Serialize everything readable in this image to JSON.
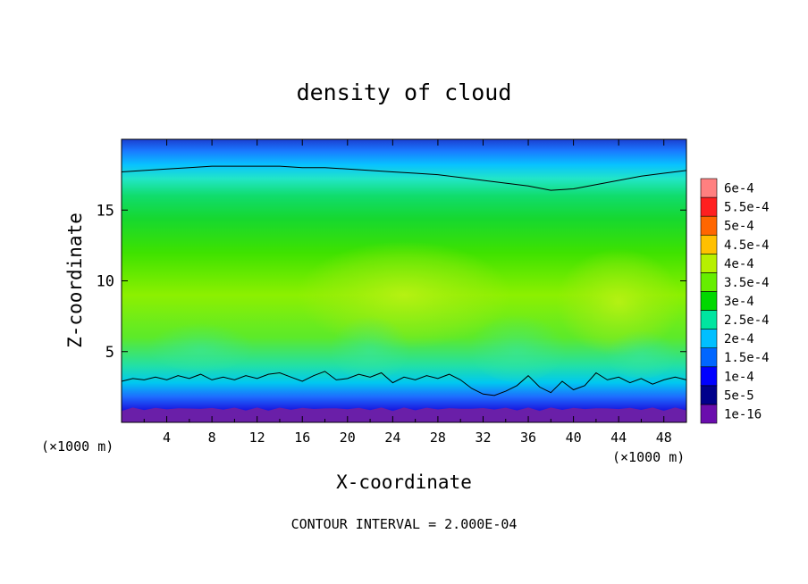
{
  "chart_data": {
    "type": "heatmap",
    "title": "density of cloud",
    "xlabel": "X-coordinate",
    "ylabel": "Z-coordinate",
    "x_unit_left": "(×1000 m)",
    "x_unit_right": "(×1000 m)",
    "xlim": [
      0,
      50
    ],
    "ylim": [
      0,
      20
    ],
    "x_ticks": [
      4,
      8,
      12,
      16,
      20,
      24,
      28,
      32,
      36,
      40,
      44,
      48
    ],
    "y_ticks": [
      5,
      10,
      15
    ],
    "footer": "CONTOUR INTERVAL = 2.000E-04",
    "colorbar": {
      "levels": [
        "1e-16",
        "5e-5",
        "1e-4",
        "1.5e-4",
        "2e-4",
        "2.5e-4",
        "3e-4",
        "3.5e-4",
        "4e-4",
        "4.5e-4",
        "5e-4",
        "5.5e-4",
        "6e-4"
      ],
      "colors": [
        "#6a0dad",
        "#00008b",
        "#0000ff",
        "#0066ff",
        "#00bfff",
        "#00e5a0",
        "#00d800",
        "#66ee00",
        "#b7f000",
        "#ffc000",
        "#ff6600",
        "#ff2020",
        "#ff8080"
      ]
    },
    "contours": [
      {
        "level": 0.0002,
        "x": [
          0,
          2,
          4,
          6,
          8,
          10,
          12,
          14,
          16,
          18,
          20,
          22,
          24,
          26,
          28,
          30,
          32,
          34,
          36,
          38,
          40,
          42,
          44,
          46,
          48,
          50
        ],
        "z": [
          17.7,
          17.8,
          17.9,
          18.0,
          18.1,
          18.1,
          18.1,
          18.1,
          18.0,
          18.0,
          17.9,
          17.8,
          17.7,
          17.6,
          17.5,
          17.3,
          17.1,
          16.9,
          16.7,
          16.4,
          16.5,
          16.8,
          17.1,
          17.4,
          17.6,
          17.8
        ]
      },
      {
        "level": 0.0002,
        "x": [
          0,
          1,
          2,
          3,
          4,
          5,
          6,
          7,
          8,
          9,
          10,
          11,
          12,
          13,
          14,
          15,
          16,
          17,
          18,
          19,
          20,
          21,
          22,
          23,
          24,
          25,
          26,
          27,
          28,
          29,
          30,
          31,
          32,
          33,
          34,
          35,
          36,
          37,
          38,
          39,
          40,
          41,
          42,
          43,
          44,
          45,
          46,
          47,
          48,
          49,
          50
        ],
        "z": [
          2.9,
          3.1,
          3.0,
          3.2,
          3.0,
          3.3,
          3.1,
          3.4,
          3.0,
          3.2,
          3.0,
          3.3,
          3.1,
          3.4,
          3.5,
          3.2,
          2.9,
          3.3,
          3.6,
          3.0,
          3.1,
          3.4,
          3.2,
          3.5,
          2.8,
          3.2,
          3.0,
          3.3,
          3.1,
          3.4,
          3.0,
          2.4,
          2.0,
          1.9,
          2.2,
          2.6,
          3.3,
          2.5,
          2.1,
          2.9,
          2.3,
          2.6,
          3.5,
          3.0,
          3.2,
          2.8,
          3.1,
          2.7,
          3.0,
          3.2,
          3.0
        ]
      }
    ]
  }
}
